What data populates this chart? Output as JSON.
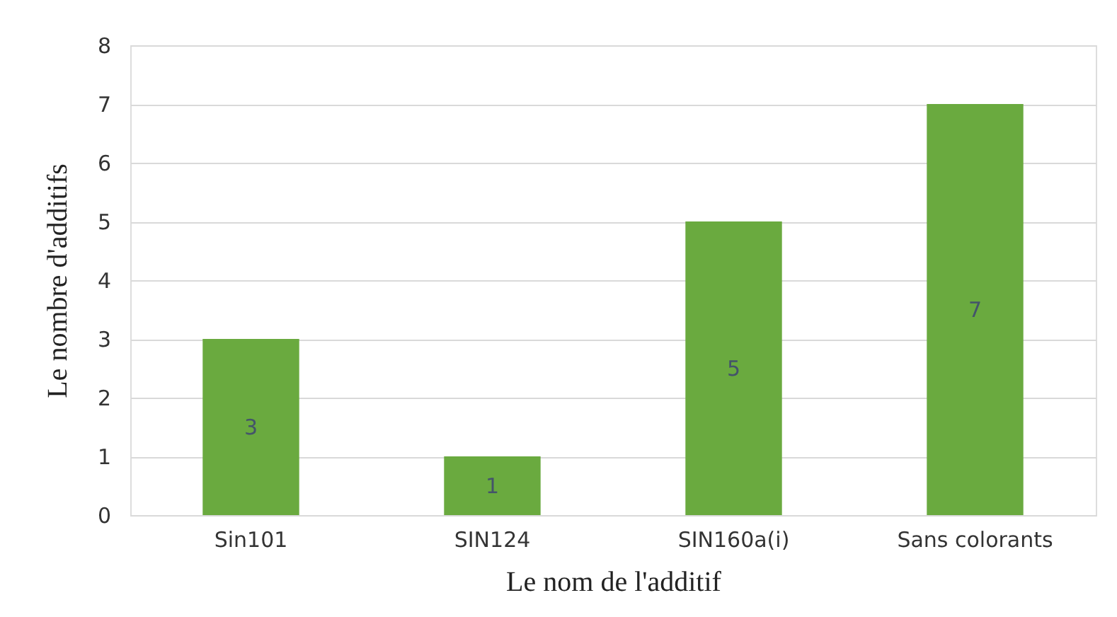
{
  "chart_data": {
    "type": "bar",
    "categories": [
      "Sin101",
      "SIN124",
      "SIN160a(i)",
      "Sans colorants"
    ],
    "values": [
      3,
      1,
      5,
      7
    ],
    "color": "#6aaa3f",
    "xlabel": "Le nom de l'additif",
    "ylabel": "Le nombre d'additifs",
    "ylim": [
      0,
      8
    ],
    "yticks": [
      0,
      1,
      2,
      3,
      4,
      5,
      6,
      7,
      8
    ],
    "grid": "y",
    "data_labels": true
  }
}
